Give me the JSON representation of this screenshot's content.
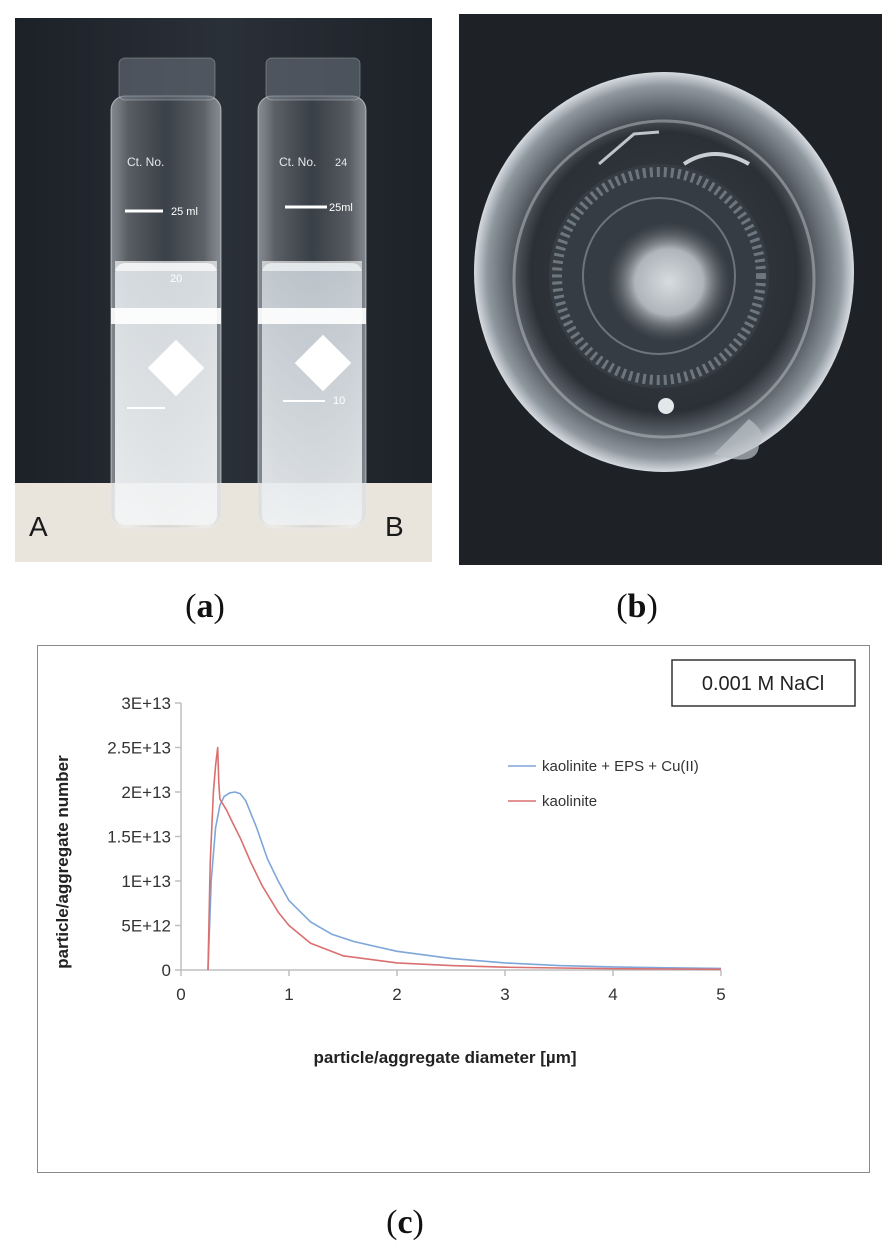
{
  "panels": {
    "a": {
      "caption": "a",
      "photo_labels": [
        "A",
        "B"
      ],
      "vial_markings": {
        "left": [
          "25 ml",
          "20",
          "Ct. No."
        ],
        "right": [
          "25ml",
          "10",
          "24",
          "Ct. No."
        ]
      }
    },
    "b": {
      "caption": "b"
    },
    "c": {
      "caption": "c"
    }
  },
  "colors": {
    "series_blue": "#7ea6d9",
    "series_red": "#d9706f",
    "axis": "#bfbfbf",
    "frame": "#8a8a8a"
  },
  "chart_data": {
    "type": "line",
    "annotation": "0.001 M NaCl",
    "xlabel": "particle/aggregate diameter  [µm]",
    "ylabel": "particle/aggregate number",
    "xlim": [
      0,
      5
    ],
    "ylim": [
      0,
      30000000000000.0
    ],
    "x_ticks": [
      0,
      1,
      2,
      3,
      4,
      5
    ],
    "x_tick_labels": [
      "0",
      "1",
      "2",
      "3",
      "4",
      "5"
    ],
    "y_ticks": [
      0,
      5000000000000.0,
      10000000000000.0,
      15000000000000.0,
      20000000000000.0,
      25000000000000.0,
      30000000000000.0
    ],
    "y_tick_labels": [
      "0",
      "5E+12",
      "1E+13",
      "1.5E+13",
      "2E+13",
      "2.5E+13",
      "3E+13"
    ],
    "grid": false,
    "legend_position": "upper-right",
    "series": [
      {
        "name": "kaolinite + EPS + Cu(II)",
        "color": "#7ea6d9",
        "x": [
          0.25,
          0.28,
          0.32,
          0.36,
          0.4,
          0.45,
          0.5,
          0.55,
          0.6,
          0.7,
          0.8,
          0.9,
          1.0,
          1.2,
          1.4,
          1.6,
          2.0,
          2.5,
          3.0,
          3.5,
          4.0,
          4.5,
          5.0
        ],
        "y": [
          0,
          10000000000000.0,
          16000000000000.0,
          18500000000000.0,
          19500000000000.0,
          19900000000000.0,
          20000000000000.0,
          19800000000000.0,
          19000000000000.0,
          16000000000000.0,
          12500000000000.0,
          10000000000000.0,
          7800000000000.0,
          5400000000000.0,
          4000000000000.0,
          3200000000000.0,
          2100000000000.0,
          1300000000000.0,
          800000000000.0,
          500000000000.0,
          350000000000.0,
          250000000000.0,
          180000000000.0
        ]
      },
      {
        "name": "kaolinite",
        "color": "#d9706f",
        "x": [
          0.25,
          0.27,
          0.3,
          0.32,
          0.34,
          0.35,
          0.36,
          0.38,
          0.42,
          0.48,
          0.55,
          0.65,
          0.75,
          0.9,
          1.0,
          1.2,
          1.5,
          2.0,
          2.5,
          3.0,
          3.5,
          4.0,
          4.5,
          5.0
        ],
        "y": [
          0,
          12000000000000.0,
          20000000000000.0,
          23000000000000.0,
          25000000000000.0,
          21000000000000.0,
          19200000000000.0,
          18800000000000.0,
          18000000000000.0,
          16500000000000.0,
          14800000000000.0,
          12000000000000.0,
          9500000000000.0,
          6500000000000.0,
          5000000000000.0,
          3000000000000.0,
          1600000000000.0,
          800000000000.0,
          500000000000.0,
          320000000000.0,
          220000000000.0,
          150000000000.0,
          110000000000.0,
          80000000000.0
        ]
      }
    ]
  }
}
